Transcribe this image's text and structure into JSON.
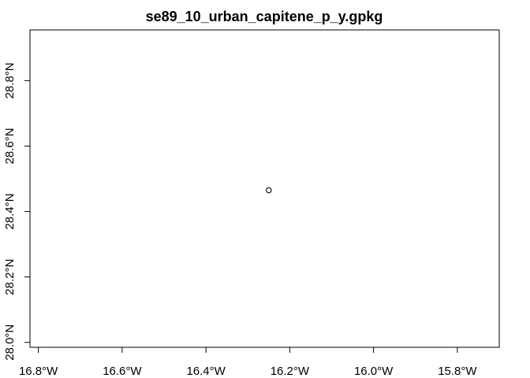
{
  "title": "se89_10_urban_capitene_p_y.gpkg",
  "chart_data": {
    "type": "scatter",
    "title": "se89_10_urban_capitene_p_y.gpkg",
    "xlabel": "",
    "ylabel": "",
    "xlim": [
      -16.82,
      -15.7
    ],
    "ylim": [
      27.985,
      28.955
    ],
    "x_ticks": [
      {
        "value": -16.8,
        "label": "16.8°W"
      },
      {
        "value": -16.6,
        "label": "16.6°W"
      },
      {
        "value": -16.4,
        "label": "16.4°W"
      },
      {
        "value": -16.2,
        "label": "16.2°W"
      },
      {
        "value": -16.0,
        "label": "16.0°W"
      },
      {
        "value": -15.8,
        "label": "15.8°W"
      }
    ],
    "y_ticks": [
      {
        "value": 28.0,
        "label": "28.0°N"
      },
      {
        "value": 28.2,
        "label": "28.2°N"
      },
      {
        "value": 28.4,
        "label": "28.4°N"
      },
      {
        "value": 28.6,
        "label": "28.6°N"
      },
      {
        "value": 28.8,
        "label": "28.8°N"
      }
    ],
    "points": [
      {
        "x": -16.25,
        "y": 28.465
      }
    ],
    "marker": "open-circle",
    "marker_color": "#000000",
    "grid": false,
    "legend": "none"
  }
}
